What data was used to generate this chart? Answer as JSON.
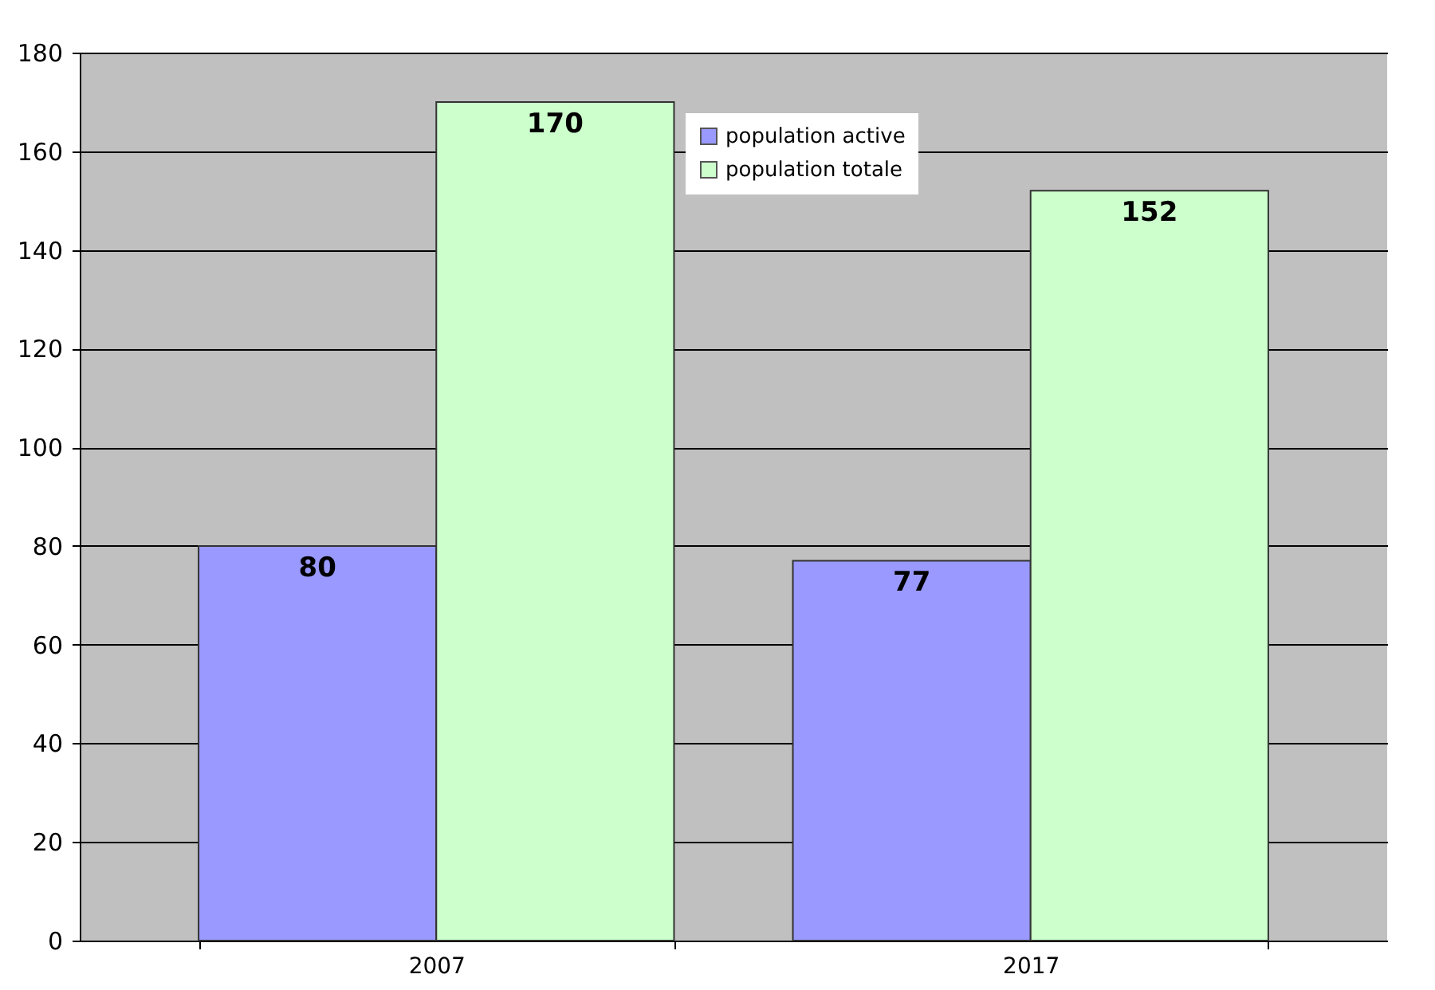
{
  "chart_data": {
    "type": "bar",
    "categories": [
      "2007",
      "2017"
    ],
    "series": [
      {
        "name": "population active",
        "color": "#9999ff",
        "values": [
          80,
          77
        ]
      },
      {
        "name": "population totale",
        "color": "#ccffcc",
        "values": [
          170,
          152
        ]
      }
    ],
    "ylim": [
      0,
      180
    ],
    "yticks": [
      0,
      20,
      40,
      60,
      80,
      100,
      120,
      140,
      160,
      180
    ],
    "grid": "y",
    "legend": "top",
    "data_labels": true
  }
}
